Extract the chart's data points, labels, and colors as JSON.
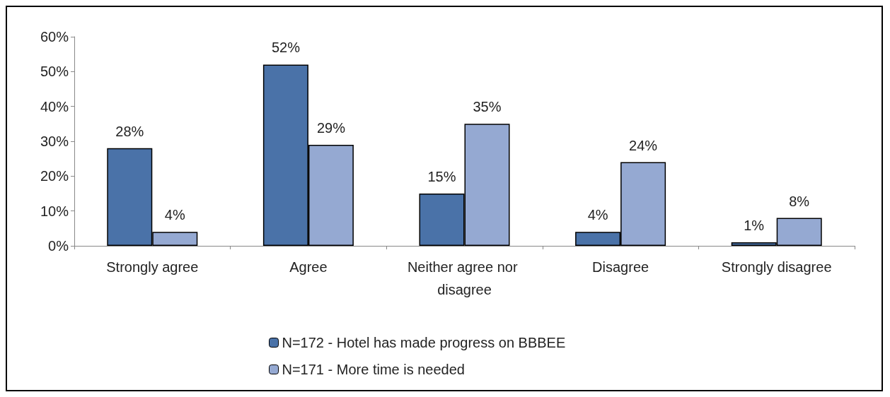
{
  "chart_data": {
    "type": "bar",
    "categories": [
      "Strongly agree",
      "Agree",
      "Neither agree nor disagree",
      "Disagree",
      "Strongly disagree"
    ],
    "series": [
      {
        "name": "N=172 - Hotel has made progress on BBBEE",
        "color": "#4a72a8",
        "values": [
          28,
          52,
          15,
          4,
          1
        ],
        "value_labels": [
          "28%",
          "52%",
          "15%",
          "4%",
          "1%"
        ]
      },
      {
        "name": "N=171 - More time is needed",
        "color": "#95a9d2",
        "values": [
          4,
          29,
          35,
          24,
          8
        ],
        "value_labels": [
          "4%",
          "29%",
          "35%",
          "24%",
          "8%"
        ]
      }
    ],
    "ylim": [
      0,
      60
    ],
    "yticks": [
      {
        "value": 0,
        "label": "0%"
      },
      {
        "value": 10,
        "label": "10%"
      },
      {
        "value": 20,
        "label": "20%"
      },
      {
        "value": 30,
        "label": "30%"
      },
      {
        "value": 40,
        "label": "40%"
      },
      {
        "value": 50,
        "label": "50%"
      },
      {
        "value": 60,
        "label": "60%"
      }
    ],
    "grid": false,
    "legend": "bottom"
  }
}
